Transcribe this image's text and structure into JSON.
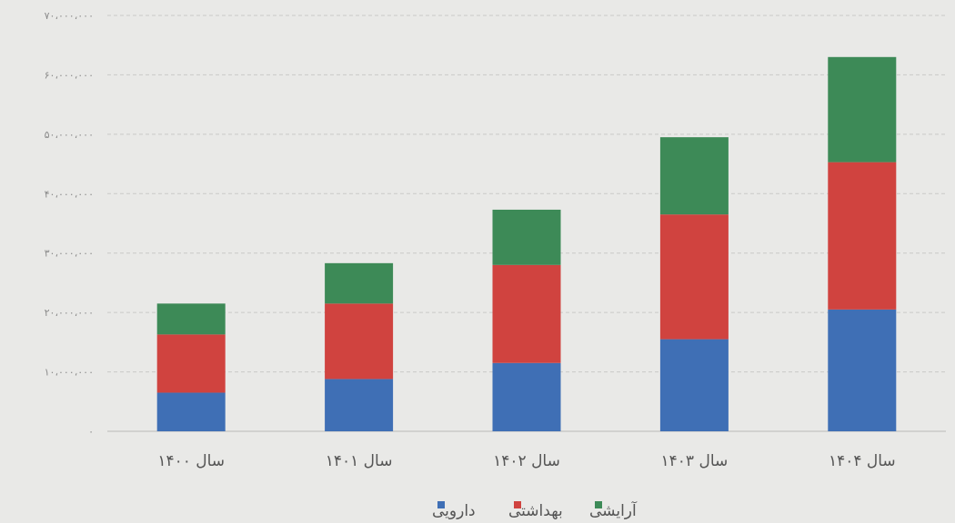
{
  "chart_data": {
    "type": "bar",
    "stacked": true,
    "categories": [
      "سال ۱۴۰۰",
      "سال ۱۴۰۱",
      "سال ۱۴۰۲",
      "سال ۱۴۰۳",
      "سال ۱۴۰۴"
    ],
    "series": [
      {
        "name": "دارویی",
        "color": "#3f6fb5",
        "values": [
          6500000,
          8800000,
          11500000,
          15500000,
          20500000
        ]
      },
      {
        "name": "بهداشتی",
        "color": "#d0433f",
        "values": [
          9800000,
          12700000,
          16500000,
          21000000,
          24800000
        ]
      },
      {
        "name": "آرایشی",
        "color": "#3d8a57",
        "values": [
          5200000,
          6800000,
          9300000,
          13000000,
          17700000
        ]
      }
    ],
    "yticks": [
      "۰",
      "۱۰،۰۰۰،۰۰۰",
      "۲۰،۰۰۰،۰۰۰",
      "۳۰،۰۰۰،۰۰۰",
      "۴۰،۰۰۰،۰۰۰",
      "۵۰،۰۰۰،۰۰۰",
      "۶۰،۰۰۰،۰۰۰",
      "۷۰،۰۰۰،۰۰۰"
    ],
    "ylim": [
      0,
      70000000
    ],
    "grid": true,
    "legend": "bottom-center",
    "title": "",
    "xlabel": "",
    "ylabel": ""
  }
}
